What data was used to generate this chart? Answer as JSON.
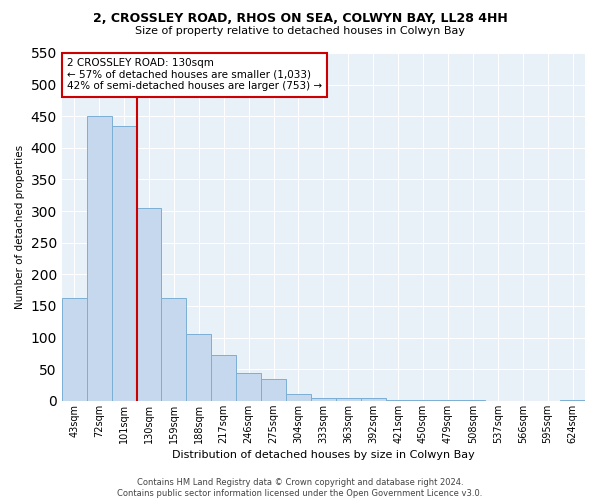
{
  "title1": "2, CROSSLEY ROAD, RHOS ON SEA, COLWYN BAY, LL28 4HH",
  "title2": "Size of property relative to detached houses in Colwyn Bay",
  "xlabel": "Distribution of detached houses by size in Colwyn Bay",
  "ylabel": "Number of detached properties",
  "footer1": "Contains HM Land Registry data © Crown copyright and database right 2024.",
  "footer2": "Contains public sector information licensed under the Open Government Licence v3.0.",
  "categories": [
    "43sqm",
    "72sqm",
    "101sqm",
    "130sqm",
    "159sqm",
    "188sqm",
    "217sqm",
    "246sqm",
    "275sqm",
    "304sqm",
    "333sqm",
    "363sqm",
    "392sqm",
    "421sqm",
    "450sqm",
    "479sqm",
    "508sqm",
    "537sqm",
    "566sqm",
    "595sqm",
    "624sqm"
  ],
  "values": [
    163,
    450,
    435,
    305,
    163,
    105,
    73,
    44,
    34,
    10,
    4,
    4,
    4,
    1,
    1,
    1,
    1,
    0,
    0,
    0,
    2
  ],
  "bar_color": "#c5d8ed",
  "bar_edge_color": "#7bafd4",
  "highlight_x": "130sqm",
  "highlight_color": "#cc0000",
  "annotation_line1": "2 CROSSLEY ROAD: 130sqm",
  "annotation_line2": "← 57% of detached houses are smaller (1,033)",
  "annotation_line3": "42% of semi-detached houses are larger (753) →",
  "annotation_box_color": "#cc0000",
  "bg_color": "#e8f0f8",
  "ylim": [
    0,
    550
  ],
  "yticks": [
    0,
    50,
    100,
    150,
    200,
    250,
    300,
    350,
    400,
    450,
    500,
    550
  ]
}
